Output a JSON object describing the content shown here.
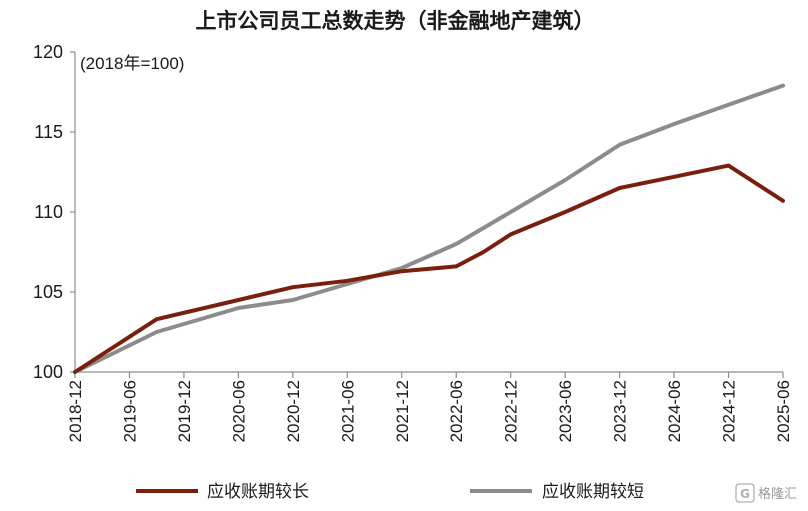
{
  "chart_data": {
    "type": "line",
    "title": "上市公司员工总数走势（非金融地产建筑）",
    "annotation": "(2018年=100)",
    "categories": [
      "2018-12",
      "2019-06",
      "2019-12",
      "2020-06",
      "2020-12",
      "2021-06",
      "2021-12",
      "2022-06",
      "2022-12",
      "2023-06",
      "2023-12",
      "2024-06",
      "2024-12",
      "2025-06"
    ],
    "ylim": [
      100,
      120
    ],
    "yticks": [
      "100",
      "105",
      "110",
      "115",
      "120"
    ],
    "grid": false,
    "legend_position": "bottom",
    "series": [
      {
        "name": "应收账期较长",
        "color": "#7a1f0e",
        "x": [
          0,
          1.5,
          3,
          4,
          5,
          5.5,
          6,
          7,
          7.5,
          8,
          9,
          10,
          11,
          12,
          13
        ],
        "values": [
          100,
          103.3,
          104.5,
          105.3,
          105.7,
          106.0,
          106.3,
          106.6,
          107.5,
          108.6,
          110.0,
          111.5,
          112.2,
          112.9,
          110.7
        ]
      },
      {
        "name": "应收账期较短",
        "color": "#8c8c8c",
        "x": [
          0,
          1.5,
          3,
          4,
          5,
          6,
          7,
          8,
          9,
          10,
          11,
          12,
          13
        ],
        "values": [
          100,
          102.5,
          104.0,
          104.5,
          105.5,
          106.5,
          108.0,
          110.0,
          112.0,
          114.2,
          115.5,
          116.7,
          117.9
        ]
      }
    ]
  },
  "watermark": {
    "text": "格隆汇"
  }
}
